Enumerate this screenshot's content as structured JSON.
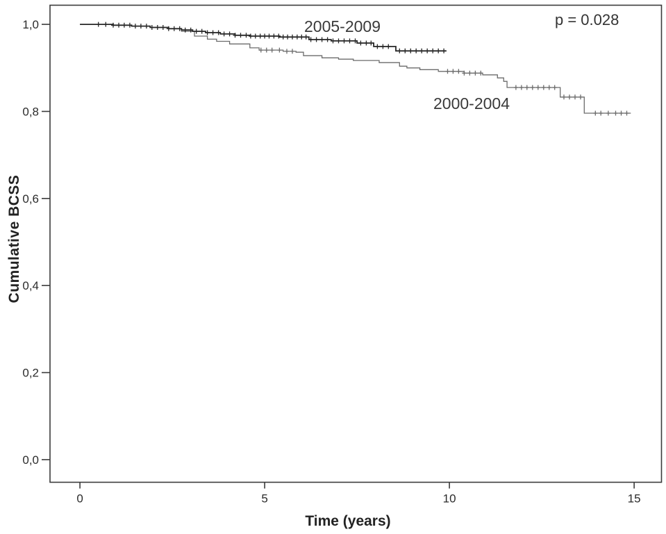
{
  "chart_data": {
    "type": "line",
    "variant": "kaplan_meier_step",
    "title": "",
    "xlabel": "Time (years)",
    "ylabel": "Cumulative BCSS",
    "annotation": "p = 0.028",
    "decimal_separator": ",",
    "grid": false,
    "legend": "inline-labels",
    "xlim": [
      -0.81,
      15.74
    ],
    "ylim": [
      -0.052,
      1.044
    ],
    "x_ticks": [
      {
        "value": 0,
        "label": "0"
      },
      {
        "value": 5,
        "label": "5"
      },
      {
        "value": 10,
        "label": "10"
      },
      {
        "value": 15,
        "label": "15"
      }
    ],
    "y_ticks": [
      {
        "value": 0.0,
        "label": "0,0"
      },
      {
        "value": 0.2,
        "label": "0,2"
      },
      {
        "value": 0.4,
        "label": "0,4"
      },
      {
        "value": 0.6,
        "label": "0,6"
      },
      {
        "value": 0.8,
        "label": "0,8"
      },
      {
        "value": 1.0,
        "label": "1,0"
      }
    ],
    "colors": {
      "background": "#ffffff",
      "axis": "#3a3a3a",
      "tick_text": "#2b2b2b"
    },
    "series": [
      {
        "name": "2005-2009",
        "label": "2005-2009",
        "color": "#262626",
        "line_width": 1.8,
        "end_time": 9.92,
        "steps": [
          [
            0,
            1.0
          ],
          [
            0.9,
            0.998
          ],
          [
            1.4,
            0.996
          ],
          [
            1.9,
            0.993
          ],
          [
            2.4,
            0.99
          ],
          [
            2.75,
            0.987
          ],
          [
            3.05,
            0.984
          ],
          [
            3.4,
            0.981
          ],
          [
            3.8,
            0.978
          ],
          [
            4.2,
            0.975
          ],
          [
            4.6,
            0.973
          ],
          [
            5.4,
            0.971
          ],
          [
            6.2,
            0.965
          ],
          [
            6.8,
            0.962
          ],
          [
            7.5,
            0.957
          ],
          [
            7.95,
            0.949
          ],
          [
            8.55,
            0.939
          ]
        ],
        "censor_times": [
          0.5,
          0.7,
          0.9,
          1.05,
          1.2,
          1.35,
          1.5,
          1.65,
          1.8,
          1.95,
          2.1,
          2.25,
          2.4,
          2.55,
          2.7,
          2.85,
          3.0,
          3.15,
          3.3,
          3.45,
          3.6,
          3.75,
          3.9,
          4.05,
          4.2,
          4.35,
          4.5,
          4.62,
          4.75,
          4.88,
          5.0,
          5.12,
          5.25,
          5.38,
          5.5,
          5.62,
          5.75,
          5.88,
          6.0,
          6.12,
          6.25,
          6.4,
          6.55,
          6.7,
          6.85,
          7.0,
          7.15,
          7.3,
          7.45,
          7.6,
          7.75,
          7.88,
          8.05,
          8.2,
          8.35,
          8.65,
          8.8,
          8.95,
          9.1,
          9.25,
          9.4,
          9.55,
          9.7,
          9.85
        ]
      },
      {
        "name": "2000-2004",
        "label": "2000-2004",
        "color": "#6b6b6b",
        "line_width": 1.3,
        "end_time": 14.91,
        "steps": [
          [
            0,
            1.0
          ],
          [
            0.9,
            0.998
          ],
          [
            1.4,
            0.996
          ],
          [
            1.9,
            0.993
          ],
          [
            2.4,
            0.99
          ],
          [
            2.75,
            0.984
          ],
          [
            3.1,
            0.973
          ],
          [
            3.45,
            0.966
          ],
          [
            3.7,
            0.961
          ],
          [
            4.05,
            0.955
          ],
          [
            4.6,
            0.946
          ],
          [
            4.85,
            0.941
          ],
          [
            5.5,
            0.938
          ],
          [
            5.85,
            0.936
          ],
          [
            6.05,
            0.928
          ],
          [
            6.55,
            0.923
          ],
          [
            7.0,
            0.92
          ],
          [
            7.4,
            0.917
          ],
          [
            8.1,
            0.912
          ],
          [
            8.65,
            0.904
          ],
          [
            8.85,
            0.9
          ],
          [
            9.2,
            0.896
          ],
          [
            9.7,
            0.892
          ],
          [
            10.4,
            0.888
          ],
          [
            10.9,
            0.884
          ],
          [
            11.3,
            0.877
          ],
          [
            11.47,
            0.869
          ],
          [
            11.56,
            0.855
          ],
          [
            13.0,
            0.833
          ],
          [
            13.65,
            0.796
          ]
        ],
        "censor_times": [
          4.9,
          5.05,
          5.2,
          5.4,
          5.6,
          5.75,
          9.95,
          10.1,
          10.25,
          10.4,
          10.55,
          10.7,
          10.85,
          11.8,
          11.95,
          12.1,
          12.25,
          12.4,
          12.55,
          12.7,
          12.85,
          13.1,
          13.25,
          13.4,
          13.55,
          13.95,
          14.1,
          14.3,
          14.5,
          14.65,
          14.8
        ]
      }
    ]
  }
}
